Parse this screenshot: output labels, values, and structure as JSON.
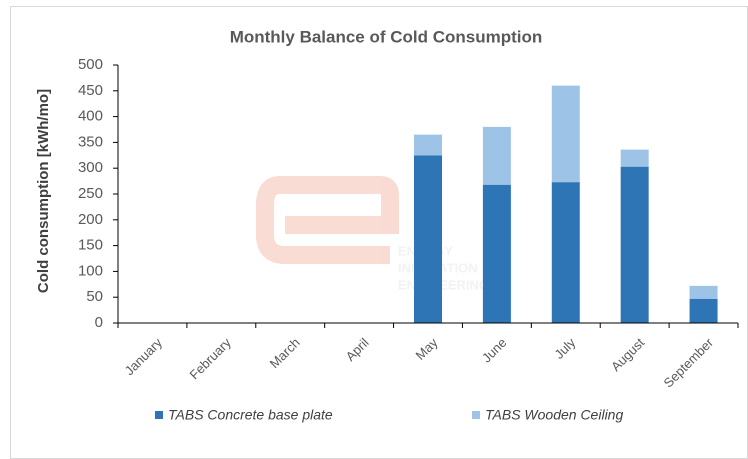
{
  "chart_data": {
    "type": "stacked_bar",
    "title": "Monthly Balance of Cold Consumption",
    "y_label": "Cold consumption  [kWh/mo]",
    "categories": [
      "January",
      "February",
      "March",
      "April",
      "May",
      "June",
      "July",
      "August",
      "September"
    ],
    "series": [
      {
        "name": "TABS Concrete base plate",
        "color": "#2e75b6",
        "values": [
          0,
          0,
          0,
          0,
          325,
          268,
          273,
          303,
          47
        ]
      },
      {
        "name": "TABS Wooden Ceiling",
        "color": "#9dc3e6",
        "values": [
          0,
          0,
          0,
          0,
          40,
          112,
          187,
          33,
          25
        ]
      }
    ],
    "ylim": [
      0,
      500
    ],
    "yticks": [
      0,
      50,
      100,
      150,
      200,
      250,
      300,
      350,
      400,
      450,
      500
    ],
    "grid": false,
    "legend": "bottom"
  },
  "watermark": [
    "ENERGY",
    "INNOVATION",
    "ENGINEERING"
  ]
}
